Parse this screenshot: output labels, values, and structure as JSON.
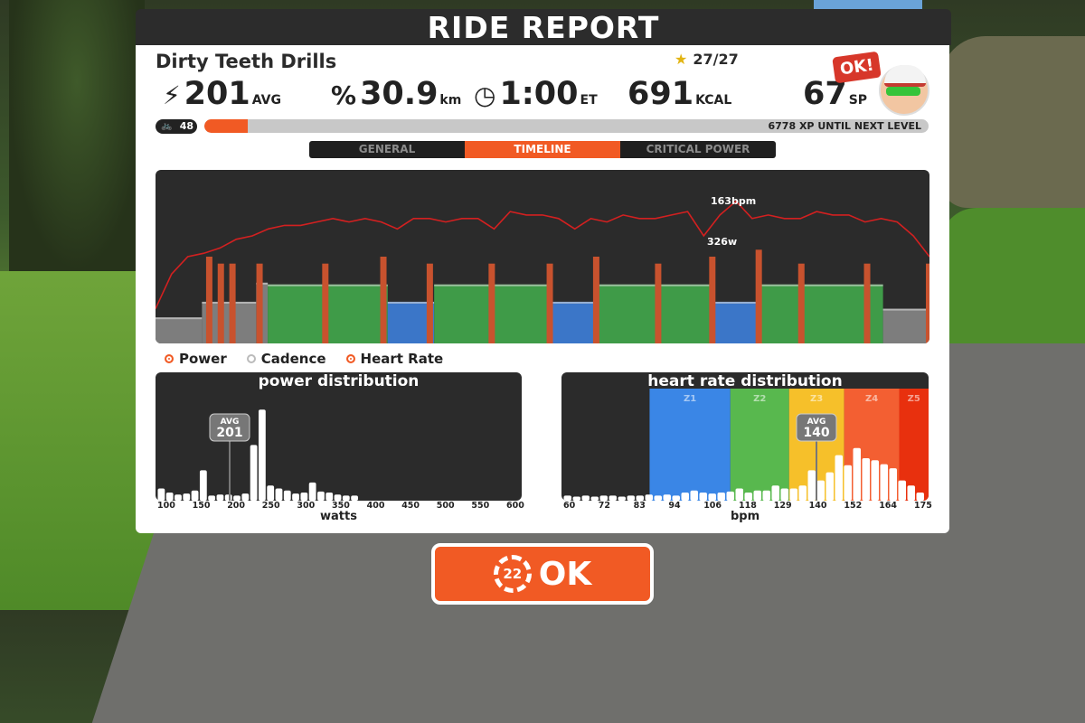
{
  "header": {
    "title": "RIDE REPORT"
  },
  "workout": {
    "name": "Dirty Teeth Drills",
    "stars": "27/27"
  },
  "stats": [
    {
      "icon": "lightning-icon",
      "value": "201",
      "unit": "AVG"
    },
    {
      "icon": "distance-icon",
      "value": "30.9",
      "unit": "km"
    },
    {
      "icon": "clock-icon",
      "value": "1:00",
      "unit": "ET"
    },
    {
      "icon": "",
      "value": "691",
      "unit": "KCAL"
    },
    {
      "icon": "",
      "value": "67",
      "unit": "SP"
    }
  ],
  "avatar": {
    "bubble": "OK!"
  },
  "level": {
    "value": "48",
    "xp_text": "6778 XP UNTIL NEXT LEVEL",
    "progress_fraction": 0.06
  },
  "tabs": [
    {
      "label": "GENERAL",
      "active": false
    },
    {
      "label": "TIMELINE",
      "active": true
    },
    {
      "label": "CRITICAL POWER",
      "active": false
    }
  ],
  "timeline": {
    "max_hr_label": "163bpm",
    "max_power_label": "326w",
    "colors": {
      "hr_line": "#d32020",
      "z1_grey": "#7d7d7d",
      "z2_blue": "#3b76c8",
      "z3_green": "#3f9b48",
      "spike": "#c8522e"
    },
    "blocks": [
      {
        "zone": "grey",
        "start": 0.0,
        "end": 0.06,
        "level": 0.15
      },
      {
        "zone": "grey",
        "start": 0.06,
        "end": 0.13,
        "level": 0.24
      },
      {
        "zone": "grey",
        "start": 0.13,
        "end": 0.145,
        "level": 0.35
      },
      {
        "zone": "green",
        "start": 0.145,
        "end": 0.3,
        "level": 0.34
      },
      {
        "zone": "blue",
        "start": 0.3,
        "end": 0.36,
        "level": 0.24
      },
      {
        "zone": "green",
        "start": 0.36,
        "end": 0.51,
        "level": 0.34
      },
      {
        "zone": "blue",
        "start": 0.51,
        "end": 0.57,
        "level": 0.24
      },
      {
        "zone": "green",
        "start": 0.57,
        "end": 0.72,
        "level": 0.34
      },
      {
        "zone": "blue",
        "start": 0.72,
        "end": 0.78,
        "level": 0.24
      },
      {
        "zone": "green",
        "start": 0.78,
        "end": 0.94,
        "level": 0.34
      },
      {
        "zone": "grey",
        "start": 0.94,
        "end": 1.0,
        "level": 0.2
      }
    ],
    "spikes": [
      0.07,
      0.085,
      0.1,
      0.135,
      0.22,
      0.295,
      0.355,
      0.435,
      0.51,
      0.57,
      0.65,
      0.72,
      0.78,
      0.835,
      0.92,
      1.0
    ],
    "spike_levels": [
      0.5,
      0.46,
      0.46,
      0.46,
      0.46,
      0.5,
      0.46,
      0.46,
      0.46,
      0.5,
      0.46,
      0.5,
      0.54,
      0.46,
      0.46,
      0.46
    ],
    "hr": [
      0.2,
      0.4,
      0.5,
      0.52,
      0.55,
      0.6,
      0.62,
      0.66,
      0.68,
      0.68,
      0.7,
      0.72,
      0.7,
      0.72,
      0.7,
      0.66,
      0.72,
      0.72,
      0.7,
      0.72,
      0.72,
      0.66,
      0.76,
      0.74,
      0.74,
      0.72,
      0.66,
      0.72,
      0.7,
      0.74,
      0.72,
      0.72,
      0.74,
      0.76,
      0.62,
      0.74,
      0.82,
      0.72,
      0.74,
      0.72,
      0.72,
      0.76,
      0.74,
      0.74,
      0.7,
      0.72,
      0.7,
      0.62,
      0.5
    ]
  },
  "legend": [
    {
      "label": "Power",
      "on": true
    },
    {
      "label": "Cadence",
      "on": false
    },
    {
      "label": "Heart Rate",
      "on": true
    }
  ],
  "power_distribution": {
    "title": "power distribution",
    "x_ticks": [
      "100",
      "150",
      "200",
      "250",
      "300",
      "350",
      "400",
      "450",
      "500",
      "550",
      "600"
    ],
    "x_label": "watts",
    "avg_label": "AVG",
    "avg_value": "201",
    "bars": [
      0.12,
      0.08,
      0.06,
      0.07,
      0.1,
      0.3,
      0.05,
      0.06,
      0.06,
      0.05,
      0.07,
      0.55,
      0.9,
      0.15,
      0.12,
      0.1,
      0.07,
      0.08,
      0.18,
      0.09,
      0.08,
      0.06,
      0.05,
      0.05
    ]
  },
  "hr_distribution": {
    "title": "heart rate distribution",
    "x_ticks": [
      "60",
      "72",
      "83",
      "94",
      "106",
      "118",
      "129",
      "140",
      "152",
      "164",
      "175"
    ],
    "x_label": "bpm",
    "avg_label": "AVG",
    "avg_value": "140",
    "zones": [
      {
        "label": "Z1",
        "color": "#3a86e6",
        "start": 0.24,
        "end": 0.46
      },
      {
        "label": "Z2",
        "color": "#58b84e",
        "start": 0.46,
        "end": 0.62
      },
      {
        "label": "Z3",
        "color": "#f6c02a",
        "start": 0.62,
        "end": 0.77
      },
      {
        "label": "Z4",
        "color": "#f35f32",
        "start": 0.77,
        "end": 0.92
      },
      {
        "label": "Z5",
        "color": "#e8300e",
        "start": 0.92,
        "end": 1.0
      }
    ],
    "bars": [
      0.05,
      0.04,
      0.05,
      0.04,
      0.05,
      0.05,
      0.04,
      0.05,
      0.05,
      0.06,
      0.05,
      0.06,
      0.05,
      0.08,
      0.1,
      0.08,
      0.07,
      0.08,
      0.09,
      0.12,
      0.08,
      0.1,
      0.1,
      0.15,
      0.12,
      0.12,
      0.15,
      0.3,
      0.2,
      0.28,
      0.45,
      0.35,
      0.52,
      0.42,
      0.4,
      0.36,
      0.32,
      0.2,
      0.15,
      0.08
    ]
  },
  "ok_button": {
    "countdown": "22",
    "label": "OK"
  }
}
